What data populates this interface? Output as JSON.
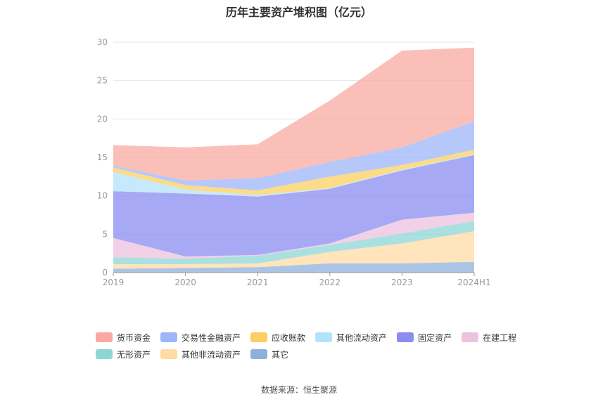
{
  "chart_data": {
    "type": "area",
    "stacked": true,
    "title": "历年主要资产堆积图（亿元）",
    "categories": [
      "2019",
      "2020",
      "2021",
      "2022",
      "2023",
      "2024H1"
    ],
    "ylim": [
      0,
      30
    ],
    "yticks": [
      0,
      5,
      10,
      15,
      20,
      25,
      30
    ],
    "grid": true,
    "legend_position": "bottom",
    "series": [
      {
        "name": "其它",
        "color": "#8fb0dc",
        "values": [
          0.5,
          0.6,
          0.7,
          1.2,
          1.2,
          1.4
        ]
      },
      {
        "name": "其他非流动资产",
        "color": "#ffdba6",
        "values": [
          0.6,
          0.5,
          0.5,
          1.5,
          2.6,
          4.0
        ]
      },
      {
        "name": "无形资产",
        "color": "#8ed6d6",
        "values": [
          0.9,
          0.7,
          1.0,
          0.9,
          1.3,
          1.3
        ]
      },
      {
        "name": "在建工程",
        "color": "#ecc2df",
        "values": [
          2.5,
          0.3,
          0.1,
          0.2,
          1.8,
          1.1
        ]
      },
      {
        "name": "固定资产",
        "color": "#8a8cf0",
        "values": [
          6.1,
          8.2,
          7.6,
          7.1,
          6.4,
          7.5
        ]
      },
      {
        "name": "其他流动资产",
        "color": "#b3e3fb",
        "values": [
          2.5,
          0.5,
          0.2,
          0.1,
          0.1,
          0.1
        ]
      },
      {
        "name": "应收账款",
        "color": "#fbcf62",
        "values": [
          0.6,
          0.6,
          0.6,
          1.5,
          0.6,
          0.6
        ]
      },
      {
        "name": "交易性金融资产",
        "color": "#9eb6f8",
        "values": [
          0.2,
          0.6,
          1.6,
          1.9,
          2.3,
          3.7
        ]
      },
      {
        "name": "货币资金",
        "color": "#f9a9a1",
        "values": [
          2.7,
          4.3,
          4.4,
          8.0,
          12.6,
          9.6
        ]
      }
    ],
    "legend_order": [
      "货币资金",
      "交易性金融资产",
      "应收账款",
      "其他流动资产",
      "固定资产",
      "在建工程",
      "无形资产",
      "其他非流动资产",
      "其它"
    ]
  },
  "footer": {
    "source": "数据来源：恒生聚源"
  }
}
